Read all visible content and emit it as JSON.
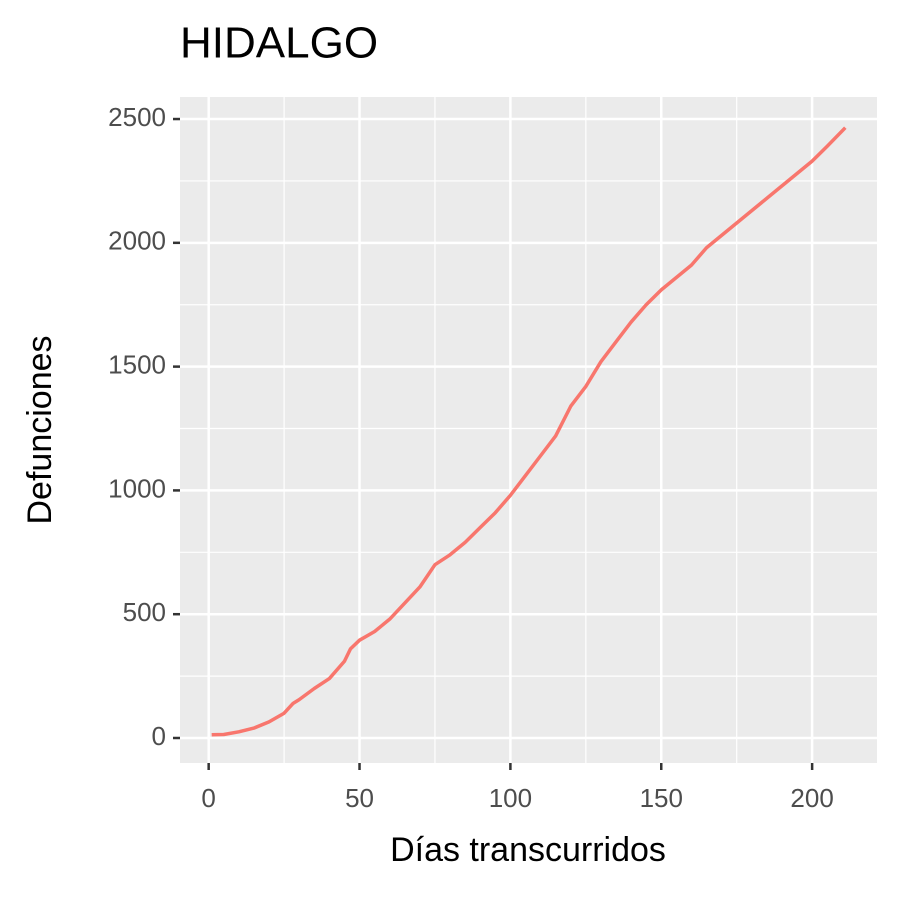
{
  "chart_data": {
    "type": "line",
    "title": "HIDALGO",
    "xlabel": "Días transcurridos",
    "ylabel": "Defunciones",
    "x": [
      1,
      5,
      10,
      15,
      20,
      25,
      28,
      30,
      35,
      40,
      45,
      47,
      50,
      55,
      60,
      65,
      70,
      75,
      80,
      85,
      90,
      95,
      100,
      105,
      110,
      115,
      120,
      125,
      130,
      135,
      140,
      145,
      150,
      155,
      160,
      165,
      170,
      175,
      180,
      185,
      190,
      195,
      200,
      205,
      211
    ],
    "series": [
      {
        "name": "HIDALGO",
        "color": "#F8766D",
        "values": [
          13,
          14,
          25,
          40,
          65,
          100,
          140,
          155,
          200,
          240,
          310,
          360,
          395,
          430,
          480,
          545,
          610,
          700,
          740,
          790,
          850,
          910,
          980,
          1060,
          1140,
          1220,
          1340,
          1420,
          1520,
          1600,
          1680,
          1750,
          1810,
          1860,
          1910,
          1980,
          2030,
          2080,
          2130,
          2180,
          2230,
          2280,
          2330,
          2390,
          2465
        ]
      }
    ],
    "xlim": [
      -9.5,
      221.5
    ],
    "xticks": [
      0,
      50,
      100,
      150,
      200
    ],
    "xminor": [
      25,
      75,
      125,
      175
    ],
    "ylim": [
      -101,
      2589
    ],
    "yticks": [
      0,
      500,
      1000,
      1500,
      2000,
      2500
    ],
    "yminor": [
      250,
      750,
      1250,
      1750,
      2250
    ],
    "grid": true,
    "legend": false
  }
}
